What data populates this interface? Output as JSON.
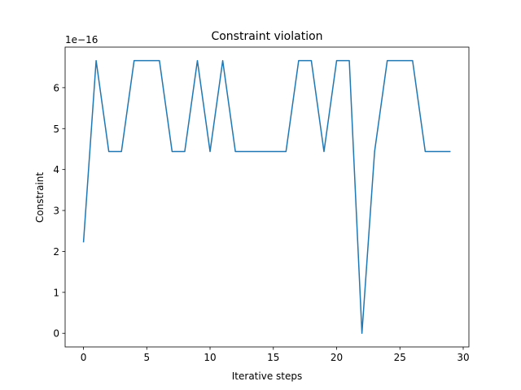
{
  "chart_data": {
    "type": "line",
    "title": "Constraint violation",
    "xlabel": "Iterative steps",
    "ylabel": "Constraint",
    "offset_text": "1e−16",
    "xlim": [
      -1.45,
      30.45
    ],
    "ylim": [
      -0.333,
      6.99
    ],
    "xticks": [
      0,
      5,
      10,
      15,
      20,
      25,
      30
    ],
    "xtick_labels": [
      "0",
      "5",
      "10",
      "15",
      "20",
      "25",
      "30"
    ],
    "yticks": [
      0,
      1,
      2,
      3,
      4,
      5,
      6
    ],
    "ytick_labels": [
      "0",
      "1",
      "2",
      "3",
      "4",
      "5",
      "6"
    ],
    "grid": false,
    "line_color": "#1f77b4",
    "series": [
      {
        "x": [
          0,
          1,
          2,
          3,
          4,
          5,
          6,
          7,
          8,
          9,
          10,
          11,
          12,
          13,
          14,
          15,
          16,
          17,
          18,
          19,
          20,
          21,
          22,
          23,
          24,
          25,
          26,
          27,
          28,
          29
        ],
        "values": [
          2.22,
          6.66,
          4.44,
          4.44,
          6.66,
          6.66,
          6.66,
          4.44,
          4.44,
          6.66,
          4.44,
          6.66,
          4.44,
          4.44,
          4.44,
          4.44,
          4.44,
          6.66,
          6.66,
          4.44,
          6.66,
          6.66,
          0.0,
          4.44,
          6.66,
          6.66,
          6.66,
          4.44,
          4.44,
          4.44
        ]
      }
    ]
  }
}
